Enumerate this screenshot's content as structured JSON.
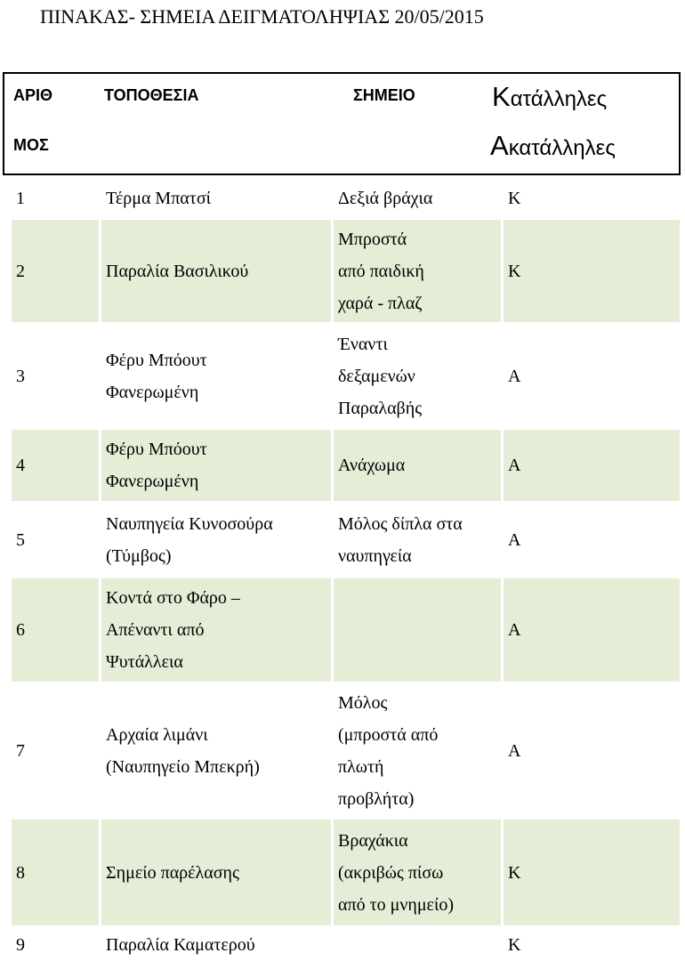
{
  "title": "ΠΙΝΑΚΑΣ- ΣΗΜΕΙΑ ΔΕΙΓΜΑΤΟΛΗΨΙΑΣ 20/05/2015",
  "table": {
    "header": {
      "number": [
        "ΑΡΙΘ",
        "ΜΟΣ"
      ],
      "location": "ΤΟΠΟΘΕΣΙΑ",
      "point": "ΣΗΜΕΙΟ",
      "status": [
        "Κατάλληλες",
        "Ακατάλληλες"
      ]
    },
    "rows": [
      {
        "number": "1",
        "location": [
          "Τέρμα Μπατσί"
        ],
        "point": [
          "Δεξιά βράχια"
        ],
        "status": "Κ"
      },
      {
        "number": "2",
        "location": [
          "Παραλία Βασιλικού"
        ],
        "point": [
          "Μπροστά",
          "από παιδική",
          "χαρά - πλαζ"
        ],
        "status": "Κ"
      },
      {
        "number": "3",
        "location": [
          "Φέρυ Μπόουτ",
          "Φανερωμένη"
        ],
        "point": [
          "Έναντι",
          "δεξαμενών",
          "Παραλαβής"
        ],
        "status": "Α"
      },
      {
        "number": "4",
        "location": [
          "Φέρυ Μπόουτ",
          "Φανερωμένη"
        ],
        "point": [
          "Ανάχωμα"
        ],
        "status": "Α"
      },
      {
        "number": "5",
        "location": [
          "Ναυπηγεία Κυνοσούρα",
          "(Τύμβος)"
        ],
        "point": [
          "Μόλος δίπλα στα",
          "ναυπηγεία"
        ],
        "status": "Α"
      },
      {
        "number": "6",
        "location": [
          "Κοντά στο Φάρο –",
          "Απέναντι από",
          "Ψυτάλλεια"
        ],
        "point": [],
        "status": "Α"
      },
      {
        "number": "7",
        "location": [
          "Αρχαία λιμάνι",
          "(Ναυπηγείο Μπεκρή)"
        ],
        "point": [
          "Μόλος",
          "(μπροστά από",
          "πλωτή",
          "προβλήτα)"
        ],
        "status": "Α"
      },
      {
        "number": "8",
        "location": [
          "Σημείο παρέλασης"
        ],
        "point": [
          "Βραχάκια",
          "(ακριβώς πίσω",
          "από το μνημείο)"
        ],
        "status": "Κ"
      },
      {
        "number": "9",
        "location": [
          "Παραλία Καματερού"
        ],
        "point": [],
        "status": "Κ"
      }
    ]
  }
}
